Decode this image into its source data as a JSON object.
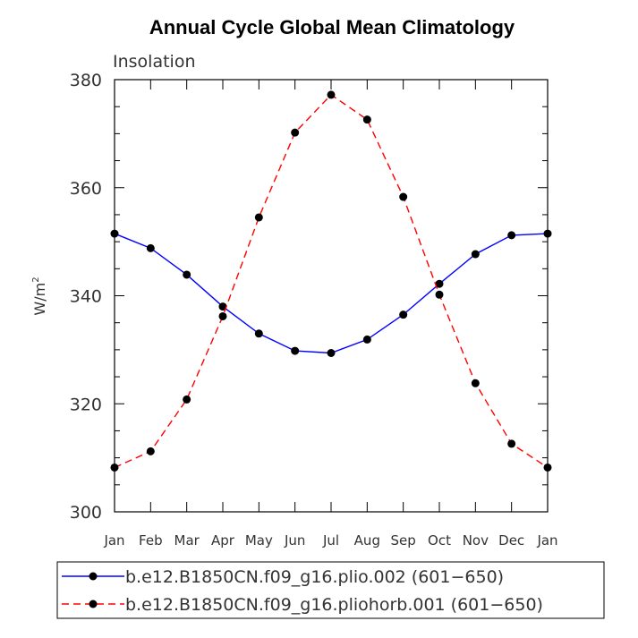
{
  "chart_data": {
    "type": "line",
    "title": "Annual Cycle Global Mean Climatology",
    "subtitle": "Insolation",
    "xlabel": "",
    "ylabel": "W/m",
    "ylabel_sup": "2",
    "categories": [
      "Jan",
      "Feb",
      "Mar",
      "Apr",
      "May",
      "Jun",
      "Jul",
      "Aug",
      "Sep",
      "Oct",
      "Nov",
      "Dec",
      "Jan"
    ],
    "ylim": [
      300,
      380
    ],
    "yticks": [
      300,
      320,
      340,
      360,
      380
    ],
    "series": [
      {
        "name": "b.e12.B1850CN.f09_g16.plio.002 (601−650)",
        "color": "#0000ff",
        "dash": "solid",
        "marker": "circle",
        "values": [
          351.5,
          348.8,
          343.9,
          338.0,
          333.0,
          329.8,
          329.4,
          331.9,
          336.5,
          342.2,
          347.7,
          351.2,
          351.5
        ]
      },
      {
        "name": "b.e12.B1850CN.f09_g16.pliohorb.001 (601−650)",
        "color": "#ff0000",
        "dash": "dashed",
        "marker": "circle",
        "values": [
          308.2,
          311.2,
          320.8,
          336.2,
          354.5,
          370.2,
          377.2,
          372.6,
          358.3,
          340.2,
          323.8,
          312.6,
          308.2
        ]
      }
    ],
    "legend_position": "bottom"
  }
}
